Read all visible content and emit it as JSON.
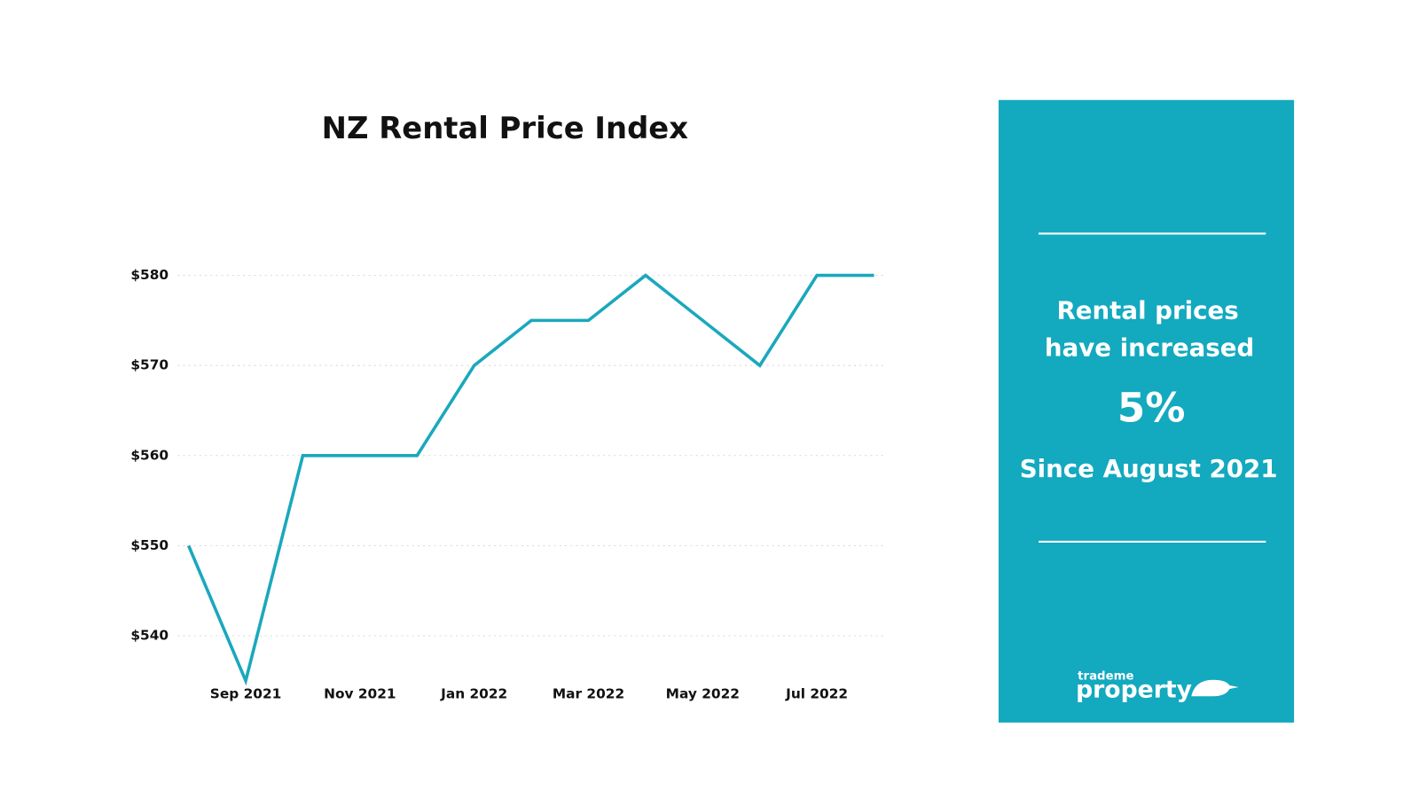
{
  "chart_data": {
    "type": "line",
    "title": "NZ Rental Price Index",
    "categories": [
      null,
      "Sep 2021",
      null,
      "Nov 2021",
      null,
      "Jan 2022",
      null,
      "Mar 2022",
      null,
      "May 2022",
      null,
      "Jul 2022",
      null
    ],
    "values": [
      550,
      535,
      560,
      560,
      560,
      570,
      575,
      575,
      580,
      575,
      570,
      580,
      580
    ],
    "color": "#1aa8bd",
    "ylim": [
      535,
      580
    ],
    "yticks": [
      {
        "value": 540,
        "label": "$540"
      },
      {
        "value": 550,
        "label": "$550"
      },
      {
        "value": 560,
        "label": "$560"
      },
      {
        "value": 570,
        "label": "$570"
      },
      {
        "value": 580,
        "label": "$580"
      }
    ],
    "grid": true
  },
  "panel": {
    "lines": [
      "Rental prices",
      "have increased"
    ],
    "figure": "5%",
    "since": "Since August 2021",
    "color": "#13a9bf",
    "logo": {
      "small": "trademe",
      "big": "property"
    }
  }
}
